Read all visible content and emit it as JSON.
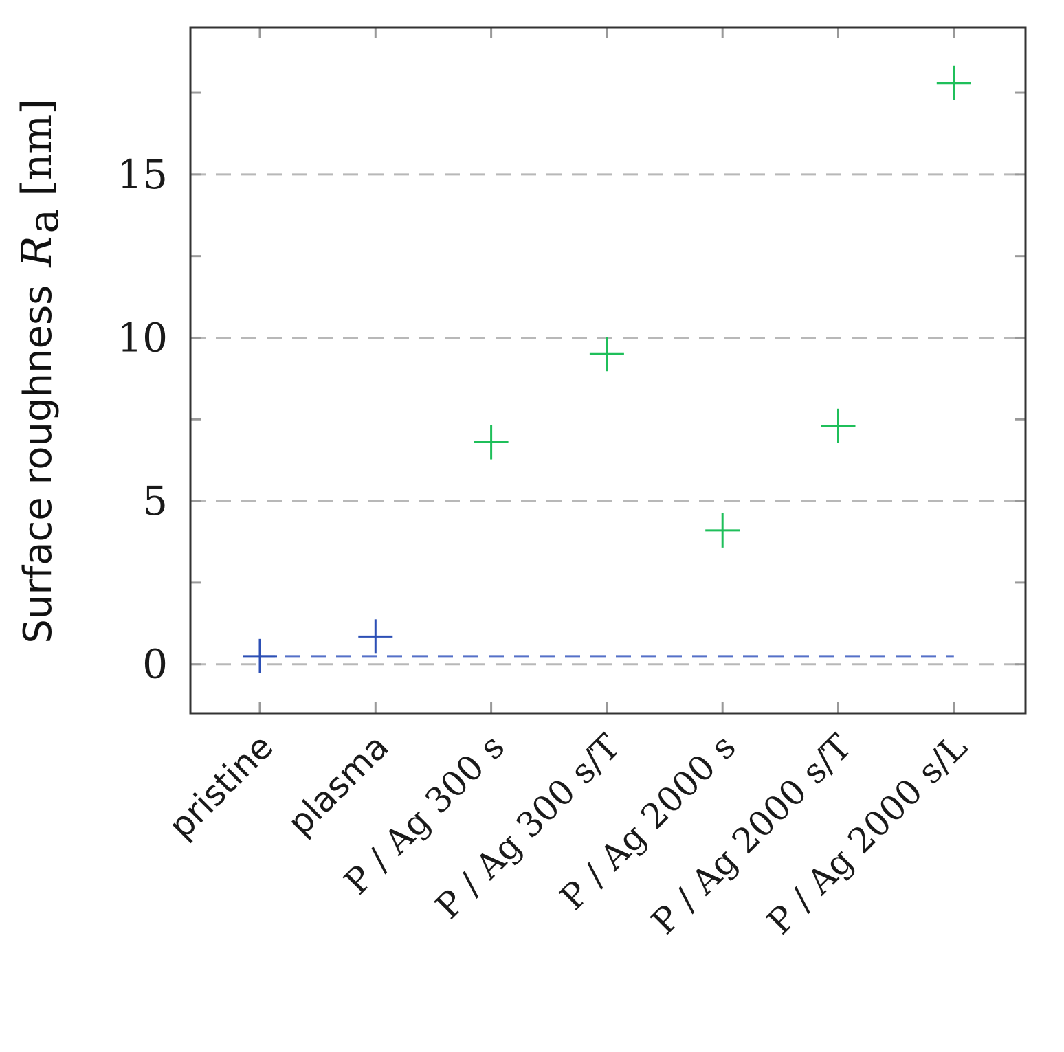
{
  "chart_data": {
    "type": "scatter",
    "title": "",
    "xlabel": "",
    "ylabel": {
      "text": "Surface roughness",
      "symbol": "R",
      "subscript": "a",
      "unit": "[nm]"
    },
    "categories": [
      "pristine",
      "plasma",
      "P / Ag 300 s",
      "P / Ag 300 s/T",
      "P / Ag 2000 s",
      "P / Ag 2000 s/T",
      "P / Ag 2000 s/L"
    ],
    "ylim": [
      -1.5,
      19.5
    ],
    "yticks": [
      0,
      5,
      10,
      15
    ],
    "yticks_minor": [
      2.5,
      7.5,
      12.5,
      17.5
    ],
    "grid": "horizontal-dashed",
    "series": [
      {
        "color": "#2c4fb5",
        "marker": "plus",
        "points": [
          {
            "category": "pristine",
            "value": 0.25
          },
          {
            "category": "plasma",
            "value": 0.85
          }
        ]
      },
      {
        "color": "#1fbf5a",
        "marker": "plus",
        "points": [
          {
            "category": "P / Ag 300 s",
            "value": 6.8
          },
          {
            "category": "P / Ag 300 s/T",
            "value": 9.5
          },
          {
            "category": "P / Ag 2000 s",
            "value": 4.1
          },
          {
            "category": "P / Ag 2000 s/T",
            "value": 7.3
          },
          {
            "category": "P / Ag 2000 s/L",
            "value": 17.8
          }
        ]
      }
    ],
    "reference_line": {
      "value": 0.25,
      "color": "#5570c8",
      "style": "dashed"
    }
  }
}
